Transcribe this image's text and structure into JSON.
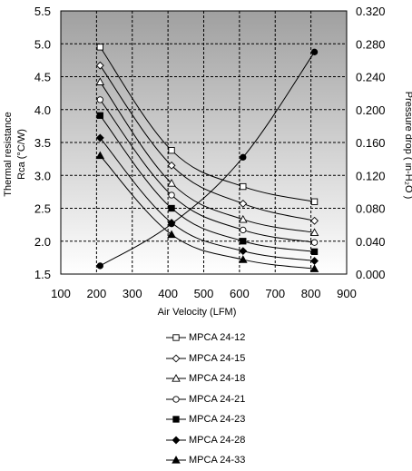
{
  "chart_data": {
    "type": "line",
    "xlabel": "Air Velocity (LFM)",
    "ylabel_left_line1": "Thermal resistance",
    "ylabel_left_line2": "Rca (°C/W)",
    "ylabel_right": "Pressure drop ( in-H₂O )",
    "xlim": [
      100,
      900
    ],
    "x_ticks": [
      100,
      200,
      300,
      400,
      500,
      600,
      700,
      800,
      900
    ],
    "ylim_left": [
      1.5,
      5.5
    ],
    "y_ticks_left": [
      "1.5",
      "2.0",
      "2.5",
      "3.0",
      "3.5",
      "4.0",
      "4.5",
      "5.0",
      "5.5"
    ],
    "ylim_right": [
      0,
      0.32
    ],
    "y_ticks_right": [
      "0.000",
      "0.040",
      "0.080",
      "0.120",
      "0.160",
      "0.200",
      "0.240",
      "0.280",
      "0.320"
    ],
    "grid": true,
    "legend_position": "bottom",
    "x": [
      210,
      410,
      610,
      810
    ],
    "series": [
      {
        "name": "MPCA 24-12",
        "axis": "left",
        "marker": "open-square",
        "values": [
          4.95,
          3.38,
          2.83,
          2.6
        ]
      },
      {
        "name": "MPCA 24-15",
        "axis": "left",
        "marker": "open-diamond",
        "values": [
          4.67,
          3.15,
          2.57,
          2.31
        ]
      },
      {
        "name": "MPCA 24-18",
        "axis": "left",
        "marker": "open-triangle",
        "values": [
          4.42,
          2.88,
          2.33,
          2.13
        ]
      },
      {
        "name": "MPCA 24-21",
        "axis": "left",
        "marker": "open-circle",
        "values": [
          4.15,
          2.7,
          2.17,
          1.98
        ]
      },
      {
        "name": "MPCA 24-23",
        "axis": "left",
        "marker": "filled-square",
        "values": [
          3.91,
          2.5,
          2.0,
          1.84
        ]
      },
      {
        "name": "MPCA 24-28",
        "axis": "left",
        "marker": "filled-diamond",
        "values": [
          3.57,
          2.28,
          1.85,
          1.7
        ]
      },
      {
        "name": "MPCA 24-33",
        "axis": "left",
        "marker": "filled-triangle",
        "values": [
          3.3,
          2.1,
          1.72,
          1.58
        ]
      }
    ],
    "pressure_drop": {
      "axis": "right",
      "marker": "filled-circle",
      "values": [
        0.01,
        0.061,
        0.142,
        0.27
      ]
    }
  },
  "colors": {
    "plot_top": "#a0a0a0",
    "plot_bottom": "#ffffff",
    "line": "#000000"
  }
}
